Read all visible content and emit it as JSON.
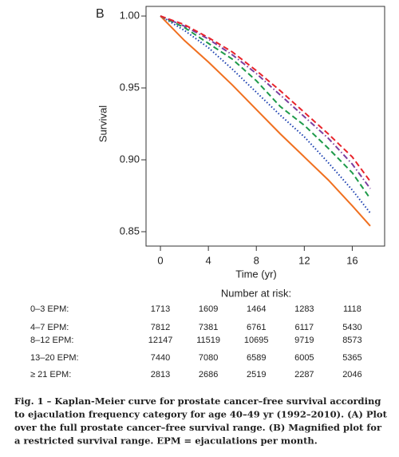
{
  "chart_data": {
    "type": "line",
    "panel_label": "B",
    "x_label": "Time (yr)",
    "y_label": "Survival",
    "x": [
      0,
      2,
      4,
      6,
      8,
      10,
      12,
      14,
      16,
      17.5
    ],
    "series": [
      {
        "color": "#f07020",
        "dash": "solid",
        "values": [
          1.0,
          0.983,
          0.968,
          0.952,
          0.935,
          0.918,
          0.902,
          0.886,
          0.868,
          0.854
        ]
      },
      {
        "color": "#1a3fb0",
        "dash": "dotted",
        "values": [
          1.0,
          0.99,
          0.978,
          0.963,
          0.947,
          0.931,
          0.916,
          0.898,
          0.879,
          0.863
        ]
      },
      {
        "color": "#1e9a4a",
        "dash": "dashed",
        "values": [
          1.0,
          0.992,
          0.981,
          0.97,
          0.955,
          0.937,
          0.924,
          0.908,
          0.891,
          0.873
        ]
      },
      {
        "color": "#7b3fa0",
        "dash": "dotdash",
        "values": [
          1.0,
          0.993,
          0.984,
          0.973,
          0.96,
          0.945,
          0.93,
          0.915,
          0.897,
          0.88
        ]
      },
      {
        "color": "#e8232a",
        "dash": "dashed",
        "values": [
          1.0,
          0.994,
          0.985,
          0.975,
          0.962,
          0.948,
          0.933,
          0.918,
          0.902,
          0.885
        ]
      }
    ],
    "xlim": [
      -1.2,
      18.7
    ],
    "xticks": [
      0,
      4,
      8,
      12,
      16
    ],
    "ylim": [
      0.84,
      1.0067
    ],
    "yticks": [
      {
        "value": 1,
        "label": "1.00"
      },
      0.95,
      {
        "value": 0.9,
        "label": "0.90"
      },
      0.85
    ],
    "risk_table": {
      "title": "Number at risk:",
      "rows": [
        {
          "label": "0–3 EPM:",
          "values": [
            1713,
            1609,
            1464,
            1283,
            1118
          ]
        },
        {
          "label": "4–7 EPM:",
          "values": [
            7812,
            7381,
            6761,
            6117,
            5430
          ]
        },
        {
          "label": "8–12 EPM:",
          "values": [
            12147,
            11519,
            10695,
            9719,
            8573
          ]
        },
        {
          "label": "13–20 EPM:",
          "values": [
            7440,
            7080,
            6589,
            6005,
            5365
          ]
        },
        {
          "label": "≥ 21 EPM:",
          "values": [
            2813,
            2686,
            2519,
            2287,
            2046
          ]
        }
      ]
    },
    "caption": [
      "Fig. 1 – Kaplan-Meier curve for prostate cancer–free survival according",
      "to ejaculation frequency category for age 40–49 yr (1992–2010). (A) Plot",
      "over the full prostate cancer–free survival range. (B) Magnified plot for",
      "a restricted survival range. EPM = ejaculations per month."
    ]
  }
}
